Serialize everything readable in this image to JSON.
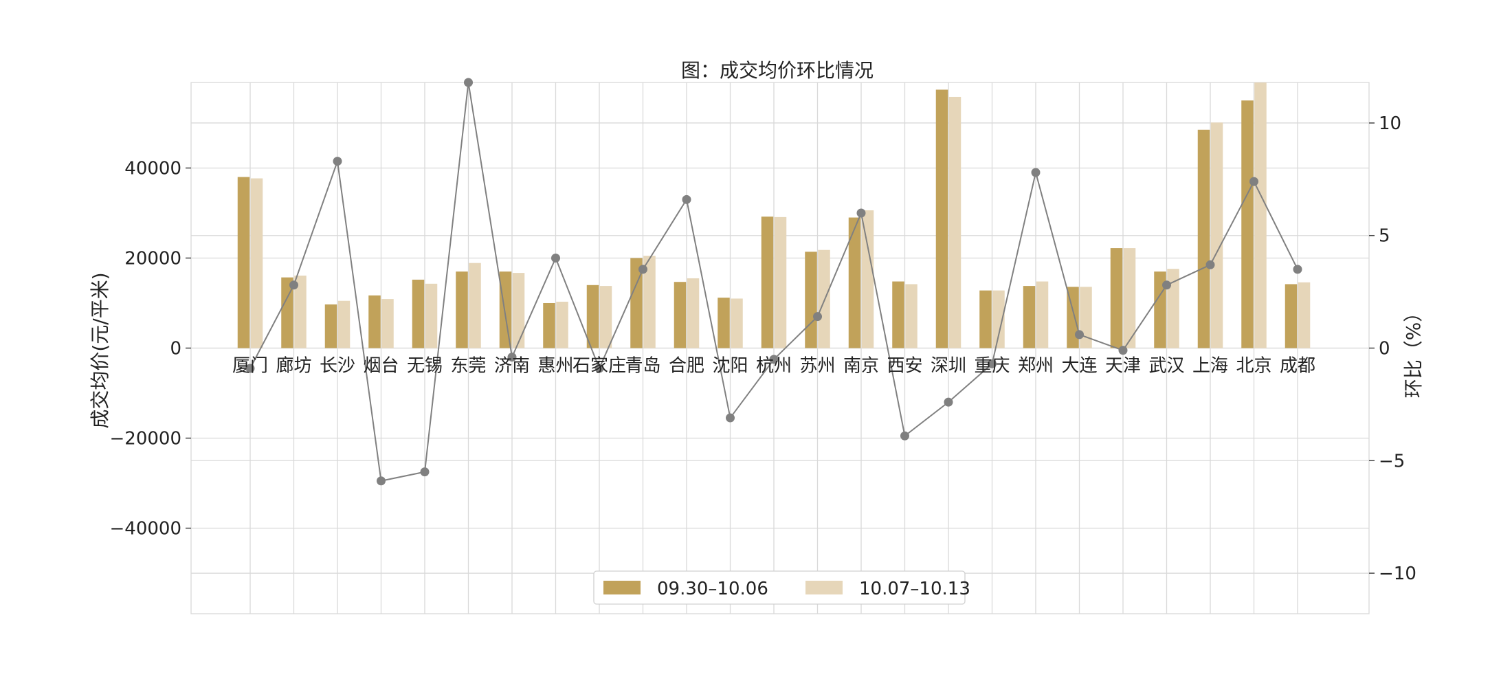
{
  "chart_data": {
    "type": "bar",
    "title": "图：成交均价环比情况",
    "ylabel_left": "成交均价(元/平米)",
    "ylabel_right": "环比（%）",
    "ylim_left": [
      -59000,
      59000
    ],
    "ylim_right": [
      -11.8,
      11.8
    ],
    "yticks_left": [
      -40000,
      -20000,
      0,
      20000,
      40000
    ],
    "yticks_left_labels": [
      "−40000",
      "−20000",
      "0",
      "20000",
      "40000"
    ],
    "yticks_right": [
      -10,
      -5,
      0,
      5,
      10
    ],
    "yticks_right_labels": [
      "−10",
      "−5",
      "0",
      "5",
      "10"
    ],
    "grid": true,
    "legend_position": "bottom-center",
    "categories": [
      "厦门",
      "廊坊",
      "长沙",
      "烟台",
      "无锡",
      "东莞",
      "济南",
      "惠州",
      "石家庄",
      "青岛",
      "合肥",
      "沈阳",
      "杭州",
      "苏州",
      "南京",
      "西安",
      "深圳",
      "重庆",
      "郑州",
      "大连",
      "天津",
      "武汉",
      "上海",
      "北京",
      "成都"
    ],
    "series": [
      {
        "name": "09.30–10.06",
        "type": "bar",
        "axis": "left",
        "color": "#c1a25a",
        "values": [
          38000,
          15700,
          9700,
          11700,
          15200,
          17000,
          17000,
          10000,
          14000,
          20000,
          14700,
          11200,
          29200,
          21400,
          29000,
          14800,
          57400,
          12800,
          13800,
          13600,
          22200,
          17000,
          48500,
          55000,
          14200
        ]
      },
      {
        "name": "10.07–10.13",
        "type": "bar",
        "axis": "left",
        "color": "#e6d6b9",
        "values": [
          37700,
          16100,
          10500,
          10900,
          14300,
          18900,
          16700,
          10300,
          13800,
          20500,
          15500,
          11000,
          29100,
          21800,
          30600,
          14200,
          55800,
          12800,
          14800,
          13600,
          22200,
          17600,
          50100,
          59500,
          14600
        ]
      },
      {
        "name": "",
        "type": "line",
        "axis": "right",
        "color": "#808080",
        "values": [
          -0.9,
          2.8,
          8.3,
          -5.9,
          -5.5,
          11.8,
          -0.4,
          4.0,
          -0.9,
          3.5,
          6.6,
          -3.1,
          -0.5,
          1.4,
          6.0,
          -3.9,
          -2.4,
          -0.7,
          7.8,
          0.6,
          -0.1,
          2.8,
          3.7,
          7.4,
          3.5
        ]
      }
    ]
  }
}
